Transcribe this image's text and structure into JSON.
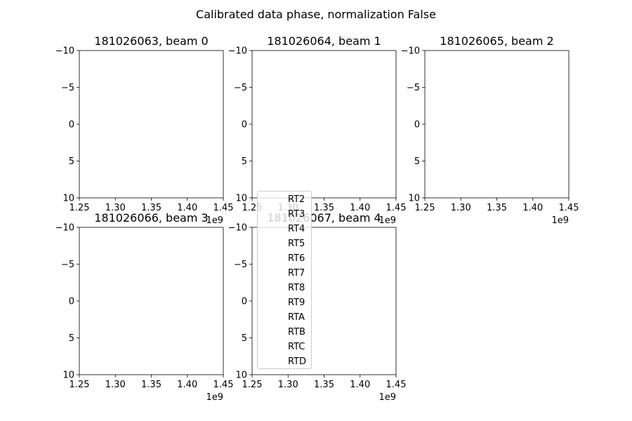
{
  "chart_data": {
    "type": "line",
    "title": "Calibrated data phase, normalization False",
    "subplots": [
      {
        "title": "181026063, beam 0",
        "xlim": [
          1.25,
          1.45
        ],
        "ylim": [
          10,
          -10
        ],
        "x_offset_label": "1e9",
        "series": []
      },
      {
        "title": "181026064, beam 1",
        "xlim": [
          1.25,
          1.45
        ],
        "ylim": [
          10,
          -10
        ],
        "x_offset_label": "1e9",
        "series": []
      },
      {
        "title": "181026065, beam 2",
        "xlim": [
          1.25,
          1.45
        ],
        "ylim": [
          10,
          -10
        ],
        "x_offset_label": "1e9",
        "series": []
      },
      {
        "title": "181026066, beam 3",
        "xlim": [
          1.25,
          1.45
        ],
        "ylim": [
          10,
          -10
        ],
        "x_offset_label": "1e9",
        "series": []
      },
      {
        "title": "181026067, beam 4",
        "xlim": [
          1.25,
          1.45
        ],
        "ylim": [
          10,
          -10
        ],
        "x_offset_label": "1e9",
        "series": []
      }
    ],
    "xticks": [
      "1.25",
      "1.30",
      "1.35",
      "1.40",
      "1.45"
    ],
    "yticks": [
      "−10",
      "−5",
      "0",
      "5",
      "10"
    ],
    "legend": {
      "placement": "center",
      "entries": [
        "RT2",
        "RT3",
        "RT4",
        "RT5",
        "RT6",
        "RT7",
        "RT8",
        "RT9",
        "RTA",
        "RTB",
        "RTC",
        "RTD"
      ]
    },
    "grid": false
  }
}
